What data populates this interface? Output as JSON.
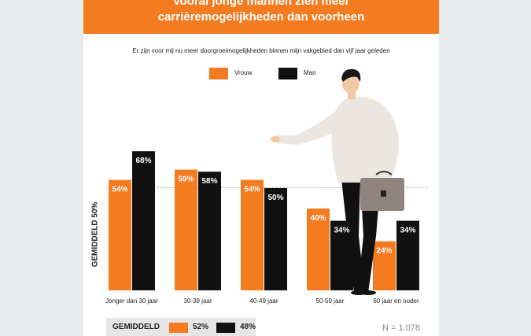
{
  "banner": {
    "line1": "Vooral jonge mannen zien meer",
    "line2": "carrièremogelijkheden dan voorheen"
  },
  "subtitle": "Er zijn voor mij nu meer doorgroeimogelijkheden binnen mijn vakgebied dan vijf jaar geleden",
  "legend": [
    {
      "name": "Vrouw",
      "color": "#f47b20"
    },
    {
      "name": "Man",
      "color": "#111111"
    }
  ],
  "ylabel": "GEMIDDELD 50%",
  "footer": {
    "label": "GEMIDDELD",
    "vrouw": "52%",
    "man": "48%",
    "n": "N = 1.078"
  },
  "chart_data": {
    "type": "bar",
    "categories": [
      "Jonger dan 30 jaar",
      "30-39 jaar",
      "40-49 jaar",
      "50-59 jaar",
      "60 jaar en ouder"
    ],
    "series": [
      {
        "name": "Vrouw",
        "values": [
          54,
          59,
          54,
          40,
          24
        ],
        "color": "#f47b20"
      },
      {
        "name": "Man",
        "values": [
          68,
          58,
          50,
          34,
          34
        ],
        "color": "#111111"
      }
    ],
    "value_suffix": "%",
    "ylim": [
      0,
      100
    ],
    "reference_line": 50,
    "legend_position": "top"
  }
}
